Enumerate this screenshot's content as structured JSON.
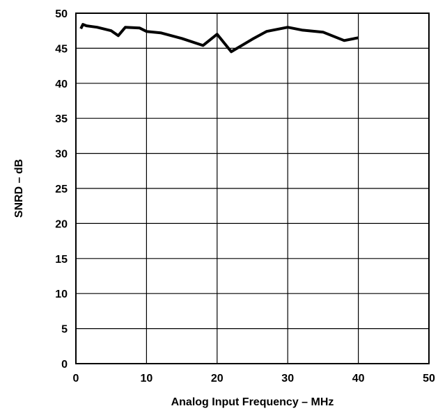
{
  "chart_data": {
    "type": "line",
    "xlabel": "Analog Input Frequency – MHz",
    "ylabel": "SNRD – dB",
    "xlim": [
      0,
      50
    ],
    "ylim": [
      0,
      50
    ],
    "x_ticks": [
      0,
      10,
      20,
      30,
      40,
      50
    ],
    "y_ticks": [
      0,
      5,
      10,
      15,
      20,
      25,
      30,
      35,
      40,
      45,
      50
    ],
    "grid": true,
    "series": [
      {
        "color": "#000000",
        "x": [
          0.7,
          1,
          1.5,
          3,
          5,
          6,
          7,
          9,
          10,
          12,
          15,
          18,
          20,
          22,
          25,
          27,
          30,
          32,
          35,
          38,
          40
        ],
        "y": [
          47.8,
          48.4,
          48.2,
          48.0,
          47.5,
          46.8,
          48.0,
          47.9,
          47.4,
          47.2,
          46.4,
          45.4,
          47.0,
          44.5,
          46.3,
          47.4,
          48.0,
          47.6,
          47.3,
          46.1,
          46.5
        ]
      }
    ]
  }
}
